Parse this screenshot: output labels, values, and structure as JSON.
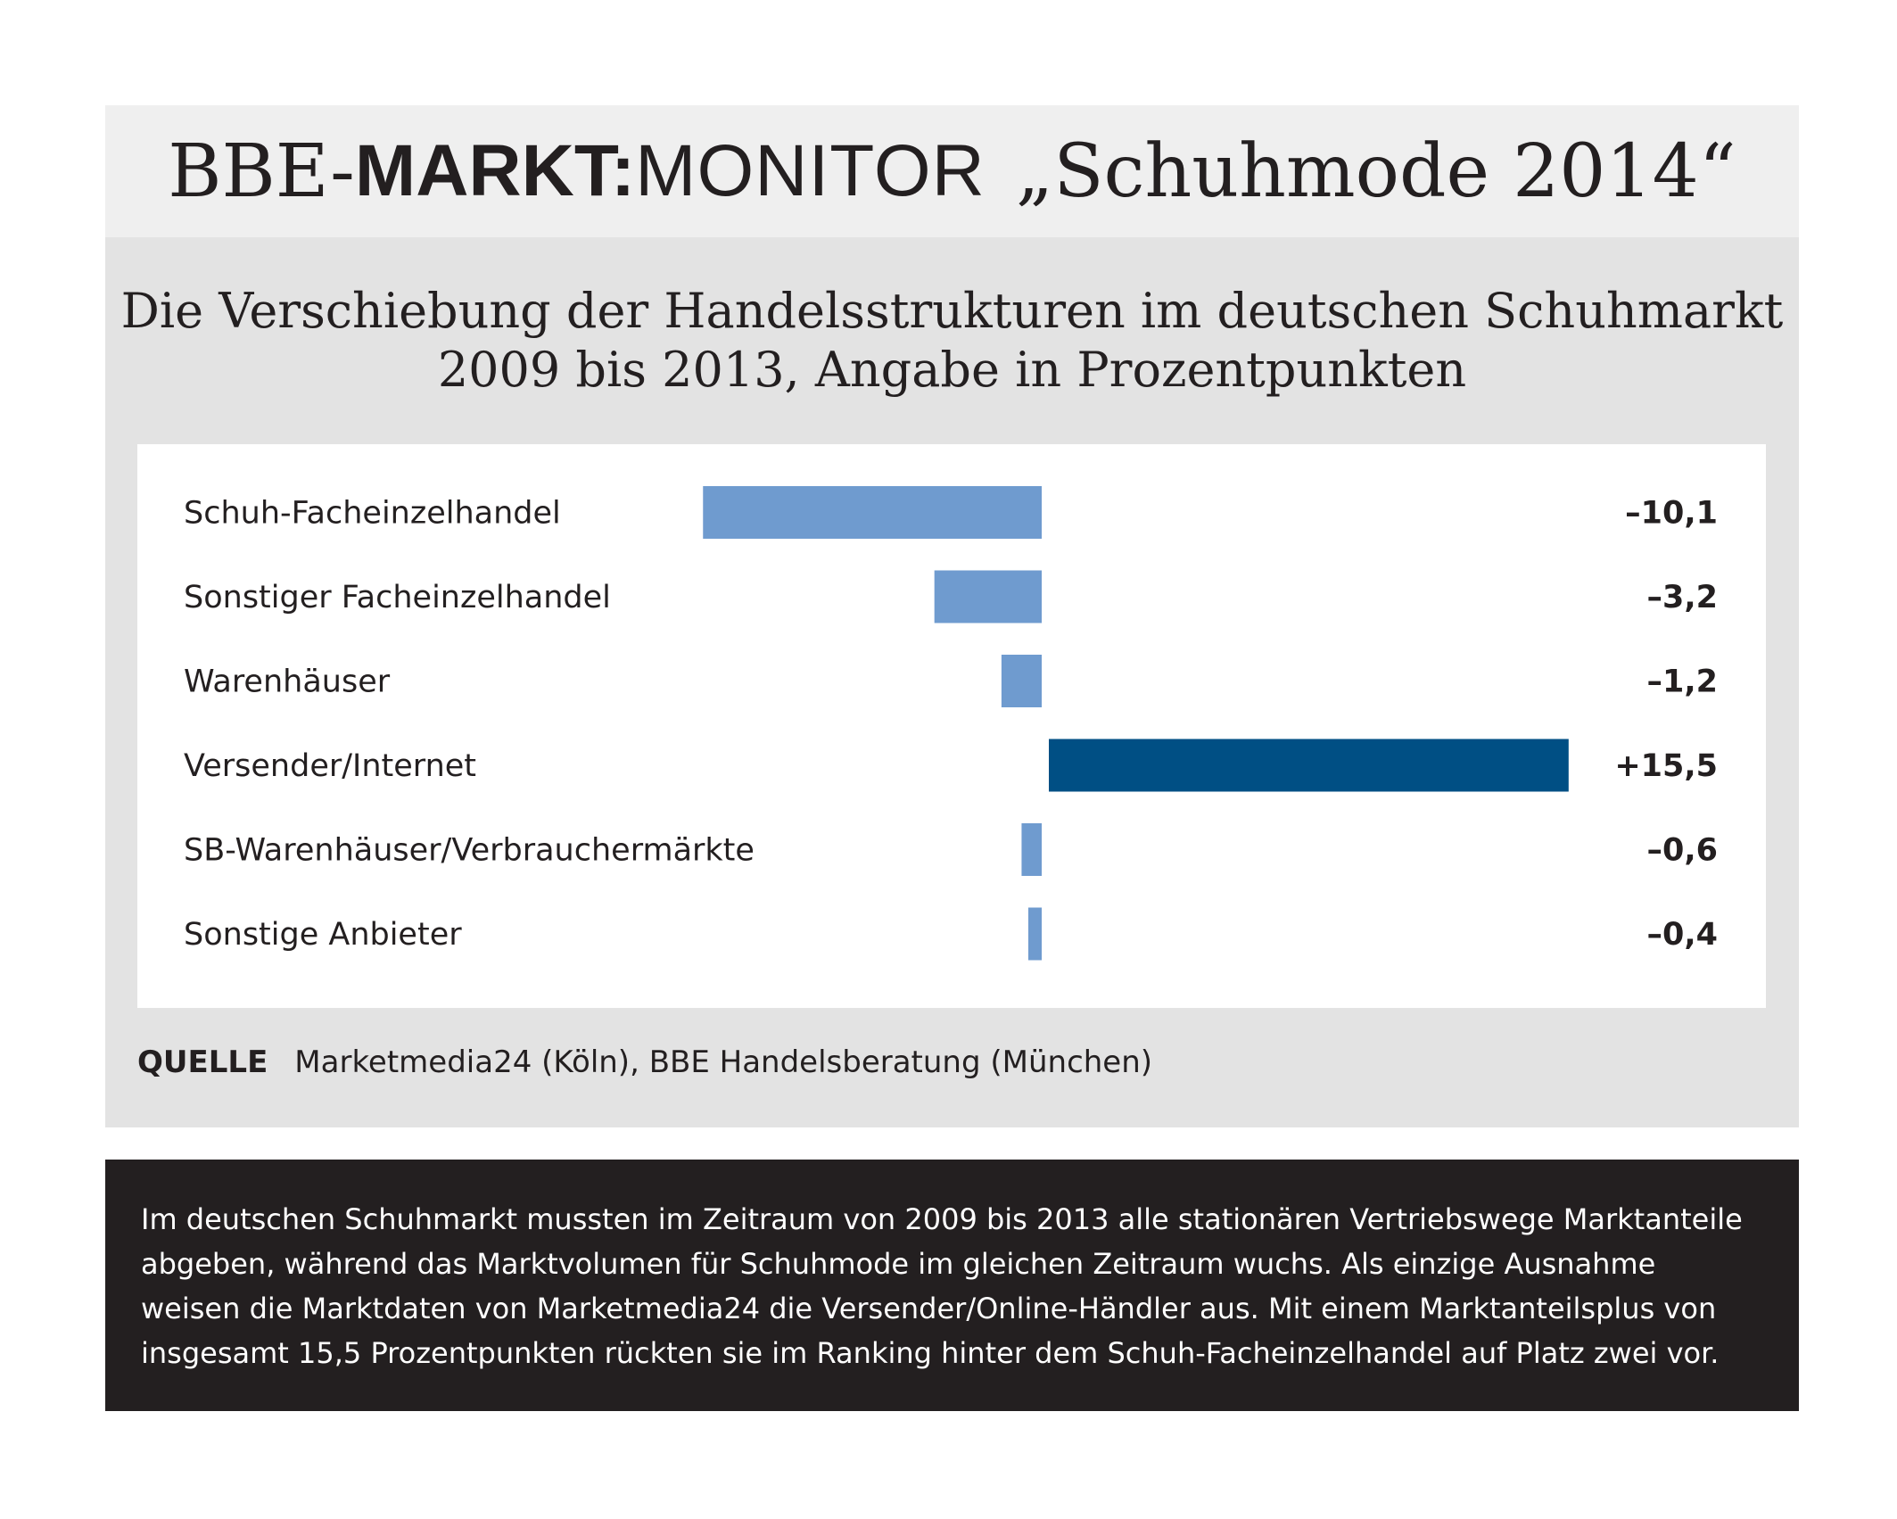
{
  "header": {
    "brand_bbe": "BBE-",
    "brand_markt": "MARKT:",
    "brand_monitor": "MONITOR",
    "issue": "„Schuhmode 2014“"
  },
  "subtitle": {
    "line1": "Die Verschiebung der Handelsstrukturen im deutschen Schuhmarkt",
    "line2": "2009 bis 2013, Angabe in Prozentpunkten"
  },
  "chart_data": {
    "type": "bar",
    "orientation": "horizontal",
    "title": "Die Verschiebung der Handelsstrukturen im deutschen Schuhmarkt 2009 bis 2013, Angabe in Prozentpunkten",
    "categories": [
      "Schuh-Facheinzelhandel",
      "Sonstiger Facheinzelhandel",
      "Warenhäuser",
      "Versender/Internet",
      "SB-Warenhäuser/Verbrauchermärkte",
      "Sonstige Anbieter"
    ],
    "values": [
      -10.1,
      -3.2,
      -1.2,
      15.5,
      -0.6,
      -0.4
    ],
    "value_labels": [
      "–10,1",
      "–3,2",
      "–1,2",
      "+15,5",
      "–0,6",
      "–0,4"
    ],
    "colors": {
      "negative": "#6f9bcf",
      "positive": "#004f84"
    },
    "xlim": [
      -10.1,
      15.5
    ],
    "grid": false,
    "xlabel": "",
    "ylabel": ""
  },
  "source": {
    "label": "QUELLE",
    "text": "Marketmedia24 (Köln), BBE Handelsberatung (München)"
  },
  "note": {
    "text": "Im deutschen Schuhmarkt mussten im Zeitraum von 2009 bis 2013 alle stationären Vertriebswege Marktanteile abgeben, während das Marktvolumen für Schuhmode im gleichen Zeitraum wuchs. Als einzige Ausnahme weisen die Marktdaten von Marketmedia24 die Versender/Online-Händler aus. Mit einem Marktanteilsplus von insgesamt 15,5 Prozentpunkten rückten sie im Ranking hinter dem Schuh-Facheinzelhandel auf Platz zwei vor."
  }
}
